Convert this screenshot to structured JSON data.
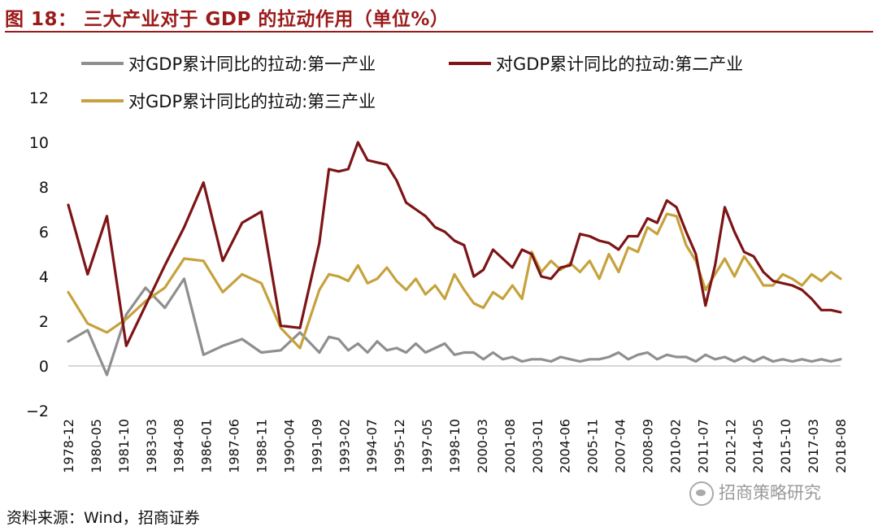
{
  "figure": {
    "title": "图 18：  三大产业对于 GDP 的拉动作用（单位%）",
    "source": "资料来源：Wind，招商证券",
    "watermark": "招商策略研究"
  },
  "colors": {
    "title": "#9b1a1a",
    "primary": "#8f8f8f",
    "secondary": "#7d1416",
    "tertiary": "#c6a23d"
  },
  "chart_data": {
    "type": "line",
    "title": "三大产业对于 GDP 的拉动作用（单位%）",
    "xlabel": "",
    "ylabel": "",
    "ylim": [
      -2,
      12
    ],
    "yticks": [
      -2,
      0,
      2,
      4,
      6,
      8,
      10,
      12
    ],
    "grid": false,
    "legend_position": "top",
    "x_index_range": [
      0,
      160
    ],
    "x_tick_labels": [
      "1978-12",
      "1980-05",
      "1981-10",
      "1983-03",
      "1984-08",
      "1986-01",
      "1987-06",
      "1988-11",
      "1990-04",
      "1991-09",
      "1993-02",
      "1994-07",
      "1995-12",
      "1997-05",
      "1998-10",
      "2000-03",
      "2001-08",
      "2003-01",
      "2004-06",
      "2005-11",
      "2007-04",
      "2008-09",
      "2010-02",
      "2011-07",
      "2012-12",
      "2014-05",
      "2015-10",
      "2017-03",
      "2018-08"
    ],
    "series": [
      {
        "name": "对GDP累计同比的拉动:第一产业",
        "color": "#8f8f8f",
        "points": [
          [
            0,
            1.1
          ],
          [
            4,
            1.6
          ],
          [
            8,
            -0.4
          ],
          [
            12,
            2.3
          ],
          [
            16,
            3.5
          ],
          [
            20,
            2.6
          ],
          [
            24,
            3.9
          ],
          [
            28,
            0.5
          ],
          [
            32,
            0.9
          ],
          [
            36,
            1.2
          ],
          [
            40,
            0.6
          ],
          [
            44,
            0.7
          ],
          [
            48,
            1.5
          ],
          [
            52,
            0.6
          ],
          [
            54,
            1.3
          ],
          [
            56,
            1.2
          ],
          [
            58,
            0.7
          ],
          [
            60,
            1.0
          ],
          [
            62,
            0.6
          ],
          [
            64,
            1.1
          ],
          [
            66,
            0.7
          ],
          [
            68,
            0.8
          ],
          [
            70,
            0.6
          ],
          [
            72,
            1.0
          ],
          [
            74,
            0.6
          ],
          [
            76,
            0.8
          ],
          [
            78,
            1.0
          ],
          [
            80,
            0.5
          ],
          [
            82,
            0.6
          ],
          [
            84,
            0.6
          ],
          [
            86,
            0.3
          ],
          [
            88,
            0.6
          ],
          [
            90,
            0.3
          ],
          [
            92,
            0.4
          ],
          [
            94,
            0.2
          ],
          [
            96,
            0.3
          ],
          [
            98,
            0.3
          ],
          [
            100,
            0.2
          ],
          [
            102,
            0.4
          ],
          [
            104,
            0.3
          ],
          [
            106,
            0.2
          ],
          [
            108,
            0.3
          ],
          [
            110,
            0.3
          ],
          [
            112,
            0.4
          ],
          [
            114,
            0.6
          ],
          [
            116,
            0.3
          ],
          [
            118,
            0.5
          ],
          [
            120,
            0.6
          ],
          [
            122,
            0.3
          ],
          [
            124,
            0.5
          ],
          [
            126,
            0.4
          ],
          [
            128,
            0.4
          ],
          [
            130,
            0.2
          ],
          [
            132,
            0.5
          ],
          [
            134,
            0.3
          ],
          [
            136,
            0.4
          ],
          [
            138,
            0.2
          ],
          [
            140,
            0.4
          ],
          [
            142,
            0.2
          ],
          [
            144,
            0.4
          ],
          [
            146,
            0.2
          ],
          [
            148,
            0.3
          ],
          [
            150,
            0.2
          ],
          [
            152,
            0.3
          ],
          [
            154,
            0.2
          ],
          [
            156,
            0.3
          ],
          [
            158,
            0.2
          ],
          [
            160,
            0.3
          ]
        ]
      },
      {
        "name": "对GDP累计同比的拉动:第二产业",
        "color": "#7d1416",
        "points": [
          [
            0,
            7.2
          ],
          [
            4,
            4.1
          ],
          [
            8,
            6.7
          ],
          [
            12,
            0.9
          ],
          [
            16,
            2.7
          ],
          [
            20,
            4.5
          ],
          [
            24,
            6.2
          ],
          [
            28,
            8.2
          ],
          [
            32,
            4.7
          ],
          [
            36,
            6.4
          ],
          [
            40,
            6.9
          ],
          [
            44,
            1.8
          ],
          [
            48,
            1.7
          ],
          [
            52,
            5.5
          ],
          [
            54,
            8.8
          ],
          [
            56,
            8.7
          ],
          [
            58,
            8.8
          ],
          [
            60,
            10.0
          ],
          [
            62,
            9.2
          ],
          [
            64,
            9.1
          ],
          [
            66,
            9.0
          ],
          [
            68,
            8.3
          ],
          [
            70,
            7.3
          ],
          [
            72,
            7.0
          ],
          [
            74,
            6.7
          ],
          [
            76,
            6.2
          ],
          [
            78,
            6.0
          ],
          [
            80,
            5.6
          ],
          [
            82,
            5.4
          ],
          [
            84,
            4.0
          ],
          [
            86,
            4.3
          ],
          [
            88,
            5.2
          ],
          [
            90,
            4.8
          ],
          [
            92,
            4.4
          ],
          [
            94,
            5.2
          ],
          [
            96,
            5.0
          ],
          [
            98,
            4.0
          ],
          [
            100,
            3.9
          ],
          [
            102,
            4.4
          ],
          [
            104,
            4.5
          ],
          [
            106,
            5.9
          ],
          [
            108,
            5.8
          ],
          [
            110,
            5.6
          ],
          [
            112,
            5.5
          ],
          [
            114,
            5.2
          ],
          [
            116,
            5.8
          ],
          [
            118,
            5.8
          ],
          [
            120,
            6.6
          ],
          [
            122,
            6.4
          ],
          [
            124,
            7.4
          ],
          [
            126,
            7.1
          ],
          [
            128,
            6.0
          ],
          [
            130,
            5.0
          ],
          [
            132,
            2.7
          ],
          [
            134,
            4.5
          ],
          [
            136,
            7.1
          ],
          [
            138,
            6.0
          ],
          [
            140,
            5.1
          ],
          [
            142,
            4.9
          ],
          [
            144,
            4.2
          ],
          [
            146,
            3.8
          ],
          [
            148,
            3.7
          ],
          [
            150,
            3.6
          ],
          [
            152,
            3.4
          ],
          [
            154,
            3.0
          ],
          [
            156,
            2.5
          ],
          [
            158,
            2.5
          ],
          [
            160,
            2.4
          ]
        ]
      },
      {
        "name": "对GDP累计同比的拉动:第三产业",
        "color": "#c6a23d",
        "points": [
          [
            0,
            3.3
          ],
          [
            4,
            1.9
          ],
          [
            8,
            1.5
          ],
          [
            12,
            2.1
          ],
          [
            16,
            2.9
          ],
          [
            20,
            3.5
          ],
          [
            24,
            4.8
          ],
          [
            28,
            4.7
          ],
          [
            32,
            3.3
          ],
          [
            36,
            4.1
          ],
          [
            40,
            3.7
          ],
          [
            44,
            1.7
          ],
          [
            48,
            0.8
          ],
          [
            52,
            3.4
          ],
          [
            54,
            4.1
          ],
          [
            56,
            4.0
          ],
          [
            58,
            3.8
          ],
          [
            60,
            4.5
          ],
          [
            62,
            3.7
          ],
          [
            64,
            3.9
          ],
          [
            66,
            4.4
          ],
          [
            68,
            3.8
          ],
          [
            70,
            3.4
          ],
          [
            72,
            3.9
          ],
          [
            74,
            3.2
          ],
          [
            76,
            3.6
          ],
          [
            78,
            3.0
          ],
          [
            80,
            4.1
          ],
          [
            82,
            3.4
          ],
          [
            84,
            2.8
          ],
          [
            86,
            2.6
          ],
          [
            88,
            3.3
          ],
          [
            90,
            3.0
          ],
          [
            92,
            3.6
          ],
          [
            94,
            3.0
          ],
          [
            96,
            5.1
          ],
          [
            98,
            4.2
          ],
          [
            100,
            4.7
          ],
          [
            102,
            4.3
          ],
          [
            104,
            4.6
          ],
          [
            106,
            4.2
          ],
          [
            108,
            4.7
          ],
          [
            110,
            3.9
          ],
          [
            112,
            5.0
          ],
          [
            114,
            4.2
          ],
          [
            116,
            5.3
          ],
          [
            118,
            5.1
          ],
          [
            120,
            6.2
          ],
          [
            122,
            5.9
          ],
          [
            124,
            6.8
          ],
          [
            126,
            6.7
          ],
          [
            128,
            5.4
          ],
          [
            130,
            4.7
          ],
          [
            132,
            3.4
          ],
          [
            134,
            4.1
          ],
          [
            136,
            4.8
          ],
          [
            138,
            4.0
          ],
          [
            140,
            4.9
          ],
          [
            142,
            4.3
          ],
          [
            144,
            3.6
          ],
          [
            146,
            3.6
          ],
          [
            148,
            4.1
          ],
          [
            150,
            3.9
          ],
          [
            152,
            3.6
          ],
          [
            154,
            4.1
          ],
          [
            156,
            3.8
          ],
          [
            158,
            4.2
          ],
          [
            160,
            3.9
          ]
        ]
      }
    ]
  }
}
